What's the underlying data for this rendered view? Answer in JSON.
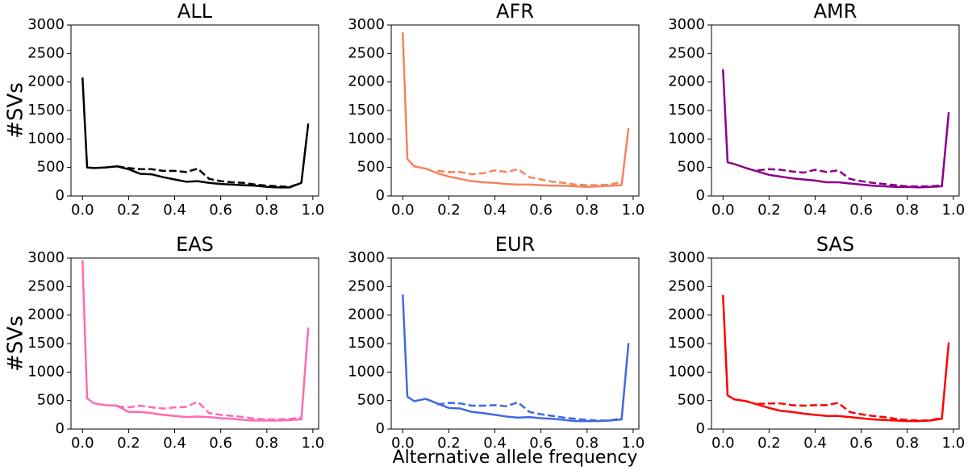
{
  "chart_data": [
    {
      "type": "line",
      "title": "ALL",
      "ylabel": "#SVs",
      "x": [
        0,
        0.02,
        0.05,
        0.1,
        0.15,
        0.2,
        0.25,
        0.3,
        0.35,
        0.4,
        0.45,
        0.5,
        0.55,
        0.6,
        0.65,
        0.7,
        0.75,
        0.8,
        0.85,
        0.9,
        0.95,
        0.98
      ],
      "series": [
        {
          "color": "#000000",
          "dashed": false,
          "values": [
            2080,
            500,
            490,
            500,
            520,
            470,
            390,
            380,
            330,
            290,
            250,
            260,
            230,
            210,
            200,
            190,
            180,
            160,
            150,
            150,
            230,
            1270
          ]
        },
        {
          "color": "#000000",
          "dashed": true,
          "values": [
            null,
            null,
            null,
            null,
            520,
            490,
            470,
            470,
            440,
            440,
            420,
            480,
            300,
            260,
            240,
            230,
            200,
            180,
            170,
            160,
            230,
            null
          ]
        }
      ],
      "xlim": [
        -0.05,
        1.025
      ],
      "ylim": [
        0,
        3000
      ],
      "xticks": [
        {
          "value": 0,
          "label": "0.0"
        },
        0.2,
        0.4,
        0.6,
        0.8,
        {
          "value": 1,
          "label": "1.0"
        }
      ],
      "yticks": [
        0,
        500,
        1000,
        1500,
        2000,
        2500,
        3000
      ]
    },
    {
      "type": "line",
      "title": "AFR",
      "x": [
        0,
        0.02,
        0.05,
        0.1,
        0.15,
        0.2,
        0.25,
        0.3,
        0.35,
        0.4,
        0.45,
        0.5,
        0.55,
        0.6,
        0.65,
        0.7,
        0.75,
        0.8,
        0.85,
        0.9,
        0.95,
        0.98
      ],
      "series": [
        {
          "color": "#f4845f",
          "dashed": false,
          "values": [
            2870,
            650,
            520,
            480,
            400,
            340,
            300,
            260,
            240,
            230,
            210,
            200,
            200,
            190,
            180,
            180,
            170,
            160,
            170,
            180,
            190,
            1190
          ]
        },
        {
          "color": "#f4845f",
          "dashed": true,
          "values": [
            null,
            null,
            null,
            null,
            440,
            420,
            420,
            380,
            400,
            450,
            420,
            470,
            330,
            290,
            250,
            230,
            200,
            190,
            190,
            200,
            250,
            null
          ]
        }
      ],
      "xlim": [
        -0.05,
        1.025
      ],
      "ylim": [
        0,
        3000
      ],
      "xticks": [
        {
          "value": 0,
          "label": "0.0"
        },
        0.2,
        0.4,
        0.6,
        0.8,
        {
          "value": 1,
          "label": "1.0"
        }
      ],
      "yticks": [
        0,
        500,
        1000,
        1500,
        2000,
        2500,
        3000
      ]
    },
    {
      "type": "line",
      "title": "AMR",
      "x": [
        0,
        0.02,
        0.05,
        0.1,
        0.15,
        0.2,
        0.25,
        0.3,
        0.35,
        0.4,
        0.45,
        0.5,
        0.55,
        0.6,
        0.65,
        0.7,
        0.75,
        0.8,
        0.85,
        0.9,
        0.95,
        0.98
      ],
      "series": [
        {
          "color": "#8b008b",
          "dashed": false,
          "values": [
            2220,
            590,
            560,
            490,
            430,
            370,
            340,
            310,
            290,
            270,
            240,
            240,
            220,
            200,
            180,
            170,
            160,
            160,
            150,
            160,
            170,
            1470
          ]
        },
        {
          "color": "#8b008b",
          "dashed": true,
          "values": [
            null,
            null,
            null,
            null,
            450,
            470,
            460,
            430,
            410,
            460,
            420,
            450,
            300,
            260,
            230,
            210,
            190,
            170,
            170,
            170,
            190,
            null
          ]
        }
      ],
      "xlim": [
        -0.05,
        1.025
      ],
      "ylim": [
        0,
        3000
      ],
      "xticks": [
        {
          "value": 0,
          "label": "0.0"
        },
        0.2,
        0.4,
        0.6,
        0.8,
        {
          "value": 1,
          "label": "1.0"
        }
      ],
      "yticks": [
        0,
        500,
        1000,
        1500,
        2000,
        2500,
        3000
      ]
    },
    {
      "type": "line",
      "title": "EAS",
      "ylabel": "#SVs",
      "x": [
        0,
        0.02,
        0.05,
        0.1,
        0.15,
        0.2,
        0.25,
        0.3,
        0.35,
        0.4,
        0.45,
        0.5,
        0.55,
        0.6,
        0.65,
        0.7,
        0.75,
        0.8,
        0.85,
        0.9,
        0.95,
        0.98
      ],
      "series": [
        {
          "color": "#ff69b4",
          "dashed": false,
          "values": [
            2960,
            540,
            450,
            420,
            410,
            300,
            300,
            280,
            250,
            230,
            210,
            220,
            210,
            190,
            180,
            160,
            150,
            150,
            150,
            160,
            170,
            1780
          ]
        },
        {
          "color": "#ff69b4",
          "dashed": true,
          "values": [
            null,
            null,
            null,
            null,
            400,
            380,
            410,
            380,
            360,
            380,
            390,
            480,
            280,
            250,
            230,
            210,
            180,
            170,
            170,
            180,
            200,
            null
          ]
        }
      ],
      "xlim": [
        -0.05,
        1.025
      ],
      "ylim": [
        0,
        3000
      ],
      "xticks": [
        {
          "value": 0,
          "label": "0.0"
        },
        0.2,
        0.4,
        0.6,
        0.8,
        {
          "value": 1,
          "label": "1.0"
        }
      ],
      "yticks": [
        0,
        500,
        1000,
        1500,
        2000,
        2500,
        3000
      ]
    },
    {
      "type": "line",
      "title": "EUR",
      "xlabel": "Alternative allele frequency",
      "x": [
        0,
        0.02,
        0.05,
        0.1,
        0.15,
        0.2,
        0.25,
        0.3,
        0.35,
        0.4,
        0.45,
        0.5,
        0.55,
        0.6,
        0.65,
        0.7,
        0.75,
        0.8,
        0.85,
        0.9,
        0.95,
        0.98
      ],
      "series": [
        {
          "color": "#4169e1",
          "dashed": false,
          "values": [
            2360,
            570,
            490,
            530,
            450,
            370,
            360,
            300,
            280,
            250,
            220,
            200,
            210,
            190,
            180,
            160,
            140,
            140,
            140,
            150,
            170,
            1510
          ]
        },
        {
          "color": "#4169e1",
          "dashed": true,
          "values": [
            null,
            null,
            null,
            null,
            430,
            460,
            450,
            410,
            410,
            420,
            400,
            470,
            300,
            260,
            230,
            200,
            180,
            160,
            150,
            150,
            190,
            null
          ]
        }
      ],
      "xlim": [
        -0.05,
        1.025
      ],
      "ylim": [
        0,
        3000
      ],
      "xticks": [
        {
          "value": 0,
          "label": "0.0"
        },
        0.2,
        0.4,
        0.6,
        0.8,
        {
          "value": 1,
          "label": "1.0"
        }
      ],
      "yticks": [
        0,
        500,
        1000,
        1500,
        2000,
        2500,
        3000
      ]
    },
    {
      "type": "line",
      "title": "SAS",
      "x": [
        0,
        0.02,
        0.05,
        0.1,
        0.15,
        0.2,
        0.25,
        0.3,
        0.35,
        0.4,
        0.45,
        0.5,
        0.55,
        0.6,
        0.65,
        0.7,
        0.75,
        0.8,
        0.85,
        0.9,
        0.95,
        0.98
      ],
      "series": [
        {
          "color": "#ff0000",
          "dashed": false,
          "values": [
            2350,
            590,
            520,
            490,
            430,
            370,
            320,
            300,
            270,
            250,
            230,
            230,
            210,
            190,
            170,
            160,
            150,
            140,
            140,
            150,
            180,
            1520
          ]
        },
        {
          "color": "#ff0000",
          "dashed": true,
          "values": [
            null,
            null,
            null,
            null,
            440,
            450,
            450,
            420,
            410,
            420,
            420,
            460,
            300,
            260,
            230,
            210,
            180,
            160,
            150,
            150,
            200,
            null
          ]
        }
      ],
      "xlim": [
        -0.05,
        1.025
      ],
      "ylim": [
        0,
        3000
      ],
      "xticks": [
        {
          "value": 0,
          "label": "0.0"
        },
        0.2,
        0.4,
        0.6,
        0.8,
        {
          "value": 1,
          "label": "1.0"
        }
      ],
      "yticks": [
        0,
        500,
        1000,
        1500,
        2000,
        2500,
        3000
      ]
    }
  ]
}
